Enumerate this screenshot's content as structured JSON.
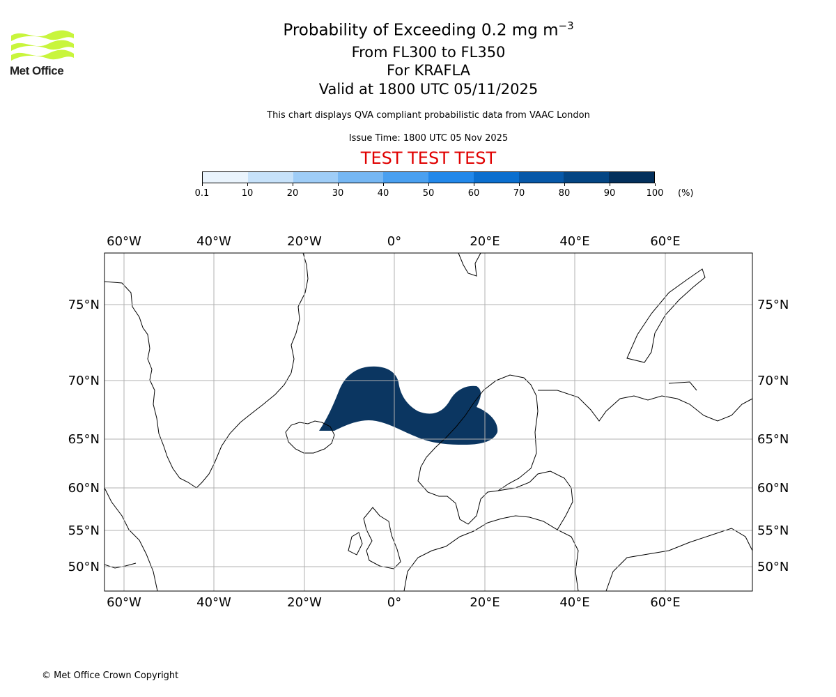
{
  "header": {
    "title_main": "Probability of Exceeding 0.2 mg m",
    "title_exponent": "−3",
    "levels": "From FL300 to FL350",
    "volcano": "For KRAFLA",
    "valid": "Valid at 1800 UTC 05/11/2025",
    "note": "This chart displays QVA compliant probabilistic data from VAAC London",
    "issue_time": "Issue Time: 1800 UTC 05 Nov 2025",
    "test_banner": "TEST TEST TEST"
  },
  "logo": {
    "text": "Met Office",
    "color": "#c8f53c",
    "icon": "met-office-wave-icon"
  },
  "colorbar": {
    "ticks": [
      "0.1",
      "10",
      "20",
      "30",
      "40",
      "50",
      "60",
      "70",
      "80",
      "90",
      "100"
    ],
    "unit": "(%)",
    "colors": [
      "#eaf4fd",
      "#c7e2fa",
      "#9fcdf7",
      "#76b7f3",
      "#4aa0f0",
      "#2288ea",
      "#0b6fcf",
      "#0758a8",
      "#044583",
      "#03305c"
    ]
  },
  "map": {
    "lon_labels": [
      "60°W",
      "40°W",
      "20°W",
      "0°",
      "20°E",
      "40°E",
      "60°E"
    ],
    "lat_labels": [
      "75°N",
      "70°N",
      "65°N",
      "60°N",
      "55°N",
      "50°N"
    ],
    "gridline_color": "#b0b0b0",
    "plume_color": "#03305c",
    "plume_probability_percent": 95
  },
  "footer": {
    "copyright": "© Met Office Crown Copyright"
  }
}
